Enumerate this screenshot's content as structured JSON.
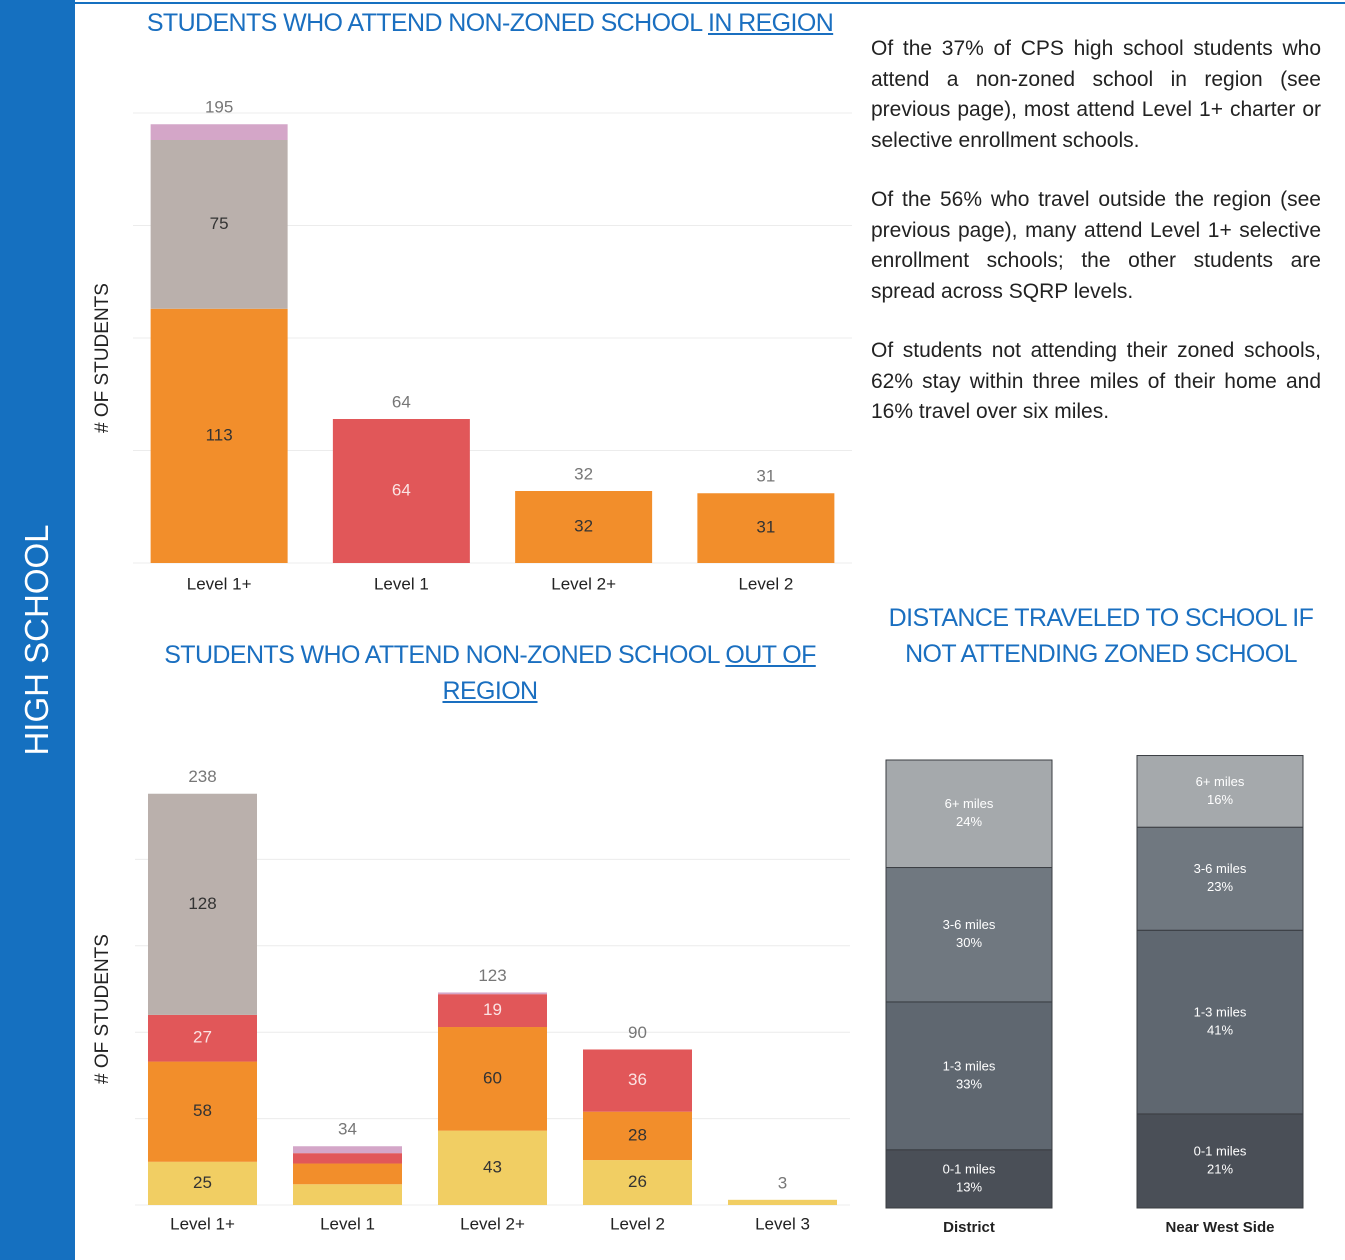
{
  "sidebar": "HIGH SCHOOL",
  "paragraphs": [
    "Of the 37% of CPS high school students who attend a non-zoned school in region (see previous page), most attend Level 1+ charter or selective enrollment schools.",
    "Of the 56% who travel outside the region (see previous page), many attend Level 1+ selective enrollment schools; the other students are spread across SQRP levels.",
    "Of students not attending their zoned schools, 62% stay within three miles of their home and 16% travel over six miles."
  ],
  "chart_data": [
    {
      "type": "bar",
      "stacked": true,
      "title": "STUDENTS WHO ATTEND NON-ZONED SCHOOL",
      "title_emphasis": "IN REGION",
      "y_label": "# OF STUDENTS",
      "categories": [
        "Level 1+",
        "Level 1",
        "Level 2+",
        "Level 2"
      ],
      "series": [
        {
          "color": "#f28e2b",
          "values": [
            113,
            null,
            32,
            31
          ]
        },
        {
          "color": "#e15759",
          "values": [
            null,
            64,
            null,
            null
          ]
        },
        {
          "color": "#bab0ac",
          "values": [
            75,
            null,
            null,
            null
          ]
        },
        {
          "color": "#d4a6c8",
          "values": [
            7,
            null,
            null,
            null
          ]
        }
      ],
      "totals": [
        195,
        64,
        32,
        31
      ],
      "ylim": [
        0,
        200
      ],
      "yticks": [
        0,
        50,
        100,
        150,
        200
      ],
      "grid": true
    },
    {
      "type": "bar",
      "stacked": true,
      "title": "STUDENTS WHO ATTEND NON-ZONED SCHOOL",
      "title_emphasis": "OUT OF REGION",
      "y_label": "# OF STUDENTS",
      "categories": [
        "Level 1+",
        "Level 1",
        "Level 2+",
        "Level 2",
        "Level 3"
      ],
      "series": [
        {
          "color": "#f1ce63",
          "values": [
            25,
            12,
            43,
            26,
            3
          ]
        },
        {
          "color": "#f28e2b",
          "values": [
            58,
            12,
            60,
            28,
            null
          ]
        },
        {
          "color": "#e15759",
          "values": [
            27,
            6,
            19,
            36,
            null
          ]
        },
        {
          "color": "#bab0ac",
          "values": [
            128,
            null,
            null,
            null,
            null
          ]
        },
        {
          "color": "#d4a6c8",
          "values": [
            null,
            4,
            1,
            null,
            null
          ]
        }
      ],
      "totals": [
        238,
        34,
        123,
        90,
        3
      ],
      "ylim": [
        0,
        250
      ],
      "yticks": [
        0,
        50,
        100,
        150,
        200
      ],
      "grid": true
    },
    {
      "type": "bar",
      "stacked": true,
      "title": "DISTANCE TRAVELED TO SCHOOL IF NOT ATTENDING ZONED SCHOOL",
      "categories": [
        "District",
        "Near West Side"
      ],
      "series": [
        {
          "name": "0-1 miles",
          "color": "#4a4f57",
          "values": [
            13,
            21
          ],
          "value_labels": [
            "13%",
            "21%"
          ]
        },
        {
          "name": "1-3 miles",
          "color": "#5f6770",
          "values": [
            33,
            41
          ],
          "value_labels": [
            "33%",
            "41%"
          ]
        },
        {
          "name": "3-6 miles",
          "color": "#707880",
          "values": [
            30,
            23
          ],
          "value_labels": [
            "30%",
            "23%"
          ]
        },
        {
          "name": "6+ miles",
          "color": "#a5a9ac",
          "values": [
            24,
            16
          ],
          "value_labels": [
            "24%",
            "16%"
          ]
        }
      ],
      "ylim": [
        0,
        100
      ]
    }
  ]
}
